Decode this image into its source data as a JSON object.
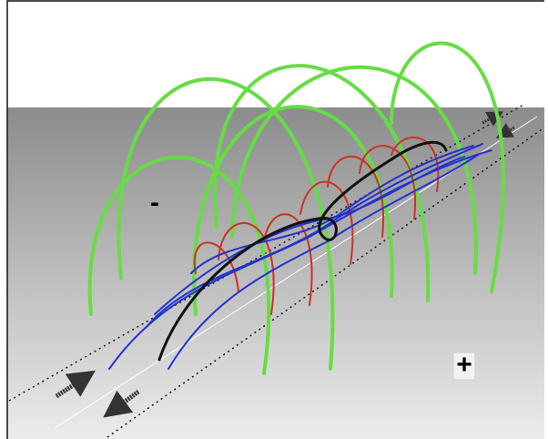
{
  "labels": {
    "minus": "-",
    "plus": "+"
  }
}
